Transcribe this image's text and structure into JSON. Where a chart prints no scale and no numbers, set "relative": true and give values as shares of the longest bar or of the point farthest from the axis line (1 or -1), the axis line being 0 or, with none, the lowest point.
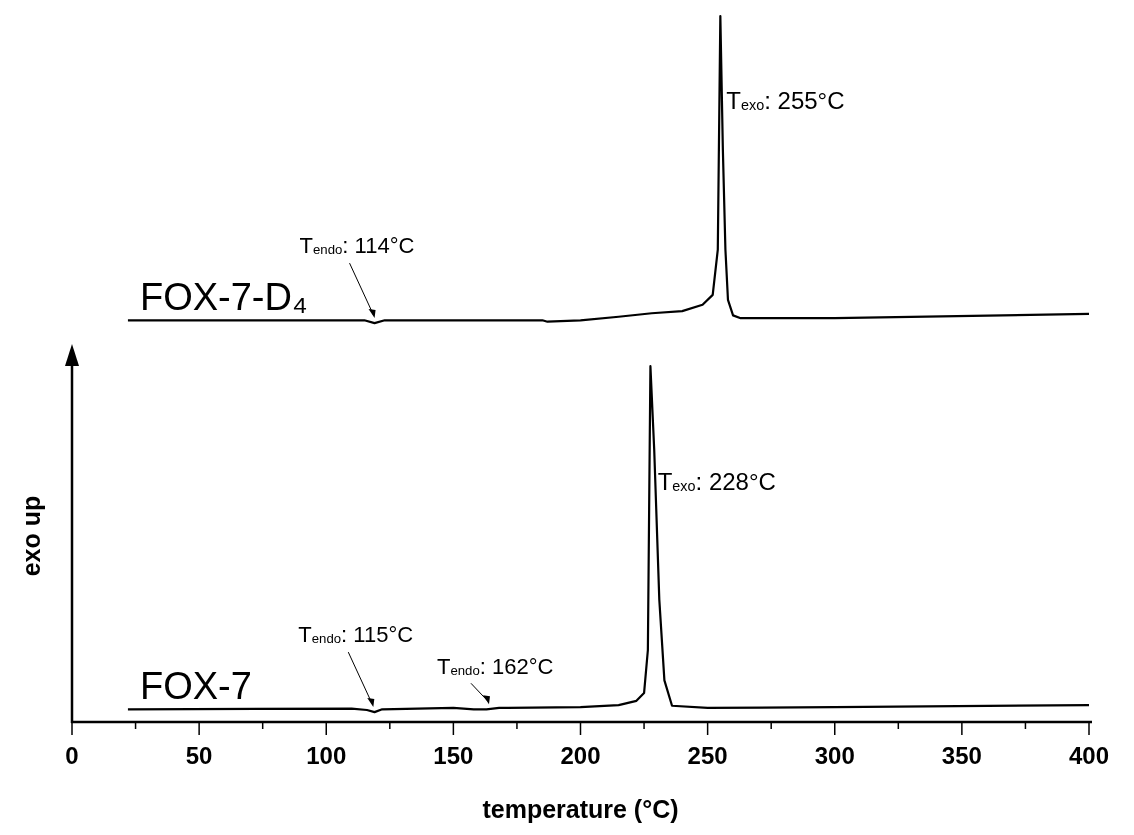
{
  "chart_data": {
    "type": "line",
    "xlabel": "temperature (°C)",
    "ylabel": "exo up",
    "relative": true,
    "tick_labels": "x",
    "legend": "left",
    "marker": "none",
    "line_style": "solid",
    "xlim": [
      0,
      400
    ],
    "xticks": [
      0,
      {
        "value": 25,
        "label": null
      },
      50,
      {
        "value": 75,
        "label": null
      },
      100,
      {
        "value": 125,
        "label": null
      },
      150,
      {
        "value": 175,
        "label": null
      },
      200,
      {
        "value": 225,
        "label": null
      },
      250,
      {
        "value": 275,
        "label": null
      },
      300,
      {
        "value": 325,
        "label": null
      },
      350,
      {
        "value": 375,
        "label": null
      },
      400
    ],
    "series": [
      {
        "name": "FOX-7-D₄",
        "color": "#000000",
        "x": [
          22,
          115,
          119,
          123,
          185,
          187,
          200,
          215,
          228,
          240,
          248,
          252,
          254,
          255,
          256,
          257,
          258,
          260,
          263,
          300,
          400
        ],
        "values": [
          0.569,
          0.569,
          0.565,
          0.569,
          0.569,
          0.567,
          0.569,
          0.574,
          0.579,
          0.582,
          0.591,
          0.605,
          0.669,
          1,
          0.81,
          0.669,
          0.598,
          0.576,
          0.572,
          0.572,
          0.578
        ]
      },
      {
        "name": "FOX-7",
        "color": "#000000",
        "x": [
          22,
          110,
          116,
          119,
          122,
          150,
          158,
          163,
          168,
          200,
          215,
          222,
          225,
          226.5,
          227.5,
          229,
          231,
          233,
          236,
          250,
          300,
          400
        ],
        "values": [
          0.018,
          0.019,
          0.017,
          0.014,
          0.018,
          0.02,
          0.018,
          0.018,
          0.02,
          0.021,
          0.024,
          0.03,
          0.041,
          0.102,
          0.504,
          0.385,
          0.173,
          0.059,
          0.023,
          0.02,
          0.021,
          0.024
        ]
      }
    ],
    "annotations": [
      {
        "text": "T$_{exo}$: 255°C",
        "x": 255,
        "y": 0.88
      },
      {
        "text": "T$_{endo}$: 114°C",
        "x": 119,
        "y": 0.565
      },
      {
        "text": "T$_{exo}$: 228°C",
        "x": 228,
        "y": 0.34
      },
      {
        "text": "T$_{endo}$: 115°C",
        "x": 118.5,
        "y": 0.014
      },
      {
        "text": "T$_{endo}$: 162°C",
        "x": 164,
        "y": 0.018
      }
    ]
  }
}
